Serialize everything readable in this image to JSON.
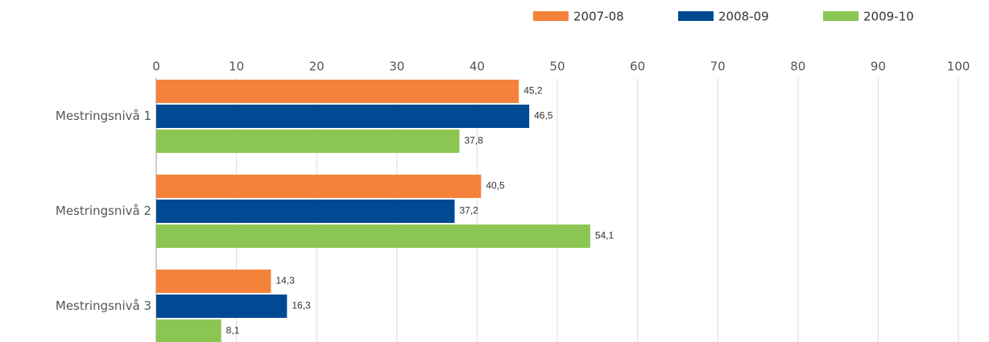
{
  "chart_data": {
    "type": "bar",
    "orientation": "horizontal",
    "categories": [
      "Mestringsnivå 1",
      "Mestringsnivå 2",
      "Mestringsnivå 3"
    ],
    "series": [
      {
        "name": "2007-08",
        "color": "#f4823a",
        "values": [
          45.2,
          40.5,
          14.3
        ],
        "value_labels": [
          "45,2",
          "40,5",
          "14,3"
        ]
      },
      {
        "name": "2008-09",
        "color": "#004a93",
        "values": [
          46.5,
          37.2,
          16.3
        ],
        "value_labels": [
          "46,5",
          "37,2",
          "16,3"
        ]
      },
      {
        "name": "2009-10",
        "color": "#8bc653",
        "values": [
          37.8,
          54.1,
          8.1
        ],
        "value_labels": [
          "37,8",
          "54,1",
          "8,1"
        ]
      }
    ],
    "xlim": [
      0,
      100
    ],
    "xticks": [
      0,
      10,
      20,
      30,
      40,
      50,
      60,
      70,
      80,
      90,
      100
    ],
    "grid": true,
    "legend": "top-right"
  }
}
